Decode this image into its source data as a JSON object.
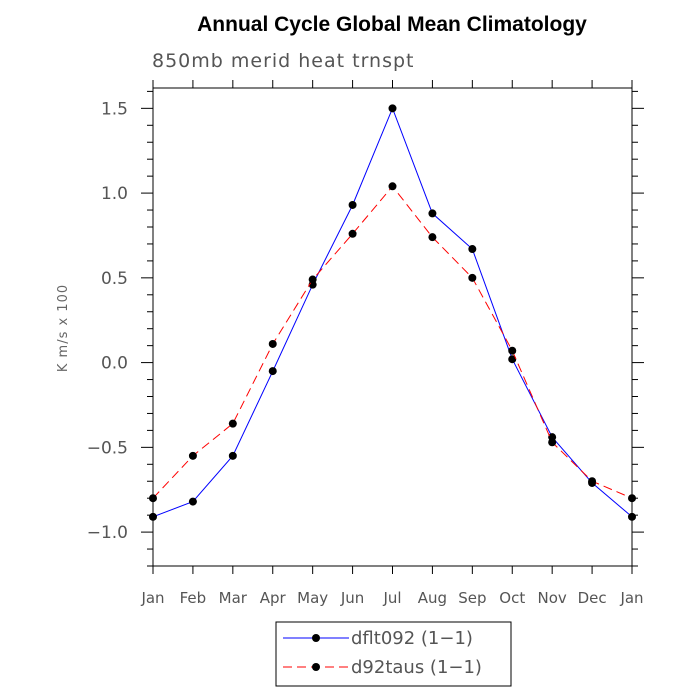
{
  "chart_data": {
    "type": "line",
    "title": "Annual Cycle Global Mean Climatology",
    "subtitle": "850mb  merid  heat  trnspt",
    "xlabel": "",
    "ylabel": "K m/s x 100",
    "categories": [
      "Jan",
      "Feb",
      "Mar",
      "Apr",
      "May",
      "Jun",
      "Jul",
      "Aug",
      "Sep",
      "Oct",
      "Nov",
      "Dec",
      "Jan"
    ],
    "ylim": [
      -1.2,
      1.62
    ],
    "yticks": [
      1.5,
      1.0,
      0.5,
      0.0,
      -0.5,
      -1.0
    ],
    "ytick_labels": [
      "1.5",
      "1.0",
      "0.5",
      "0.0",
      "−0.5",
      "−1.0"
    ],
    "grid": false,
    "legend_position": "bottom-center",
    "series": [
      {
        "name": "dflt092 (1−1)",
        "color": "#0000ff",
        "line_style": "solid",
        "marker": "filled-circle",
        "values": [
          -0.91,
          -0.82,
          -0.55,
          -0.05,
          0.46,
          0.93,
          1.5,
          0.88,
          0.67,
          0.02,
          -0.44,
          -0.71,
          -0.91
        ]
      },
      {
        "name": "d92taus (1−1)",
        "color": "#ff0000",
        "line_style": "dashed",
        "marker": "filled-circle",
        "values": [
          -0.8,
          -0.55,
          -0.36,
          0.11,
          0.49,
          0.76,
          1.04,
          0.74,
          0.5,
          0.07,
          -0.47,
          -0.7,
          -0.8
        ]
      }
    ]
  }
}
